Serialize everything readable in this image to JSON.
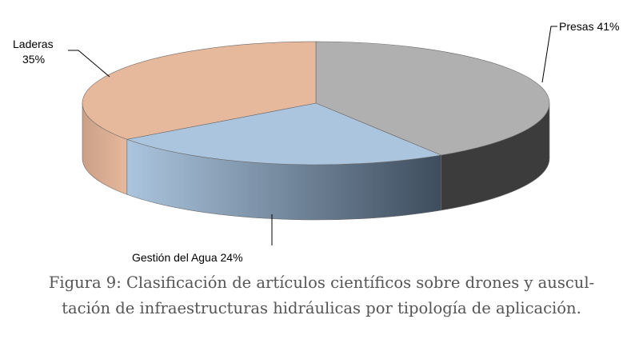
{
  "chart_data": {
    "type": "pie",
    "style": "3d",
    "slices": [
      {
        "name": "Presas",
        "value": 41,
        "label_text": "Presas 41%",
        "color": "#b0b0b0",
        "side_dark": "#3c3c3c",
        "side_light": "#707070"
      },
      {
        "name": "Gestión del Agua",
        "value": 24,
        "label_text": "Gestión del Agua 24%",
        "color": "#abc5de",
        "side_dark": "#3e4d5e",
        "side_light": "#abc5de"
      },
      {
        "name": "Laderas",
        "value": 35,
        "label_line1": "Laderas",
        "label_line2": "35%",
        "color": "#e6b89c",
        "side_dark": "#caa087",
        "side_light": "#e6b89c"
      }
    ],
    "title": "",
    "legend": "none"
  },
  "caption": {
    "line1": "Figura 9: Clasificación de artículos científicos sobre drones y auscul-",
    "line2": "tación de infraestructuras hidráulicas por tipología de aplicación."
  }
}
